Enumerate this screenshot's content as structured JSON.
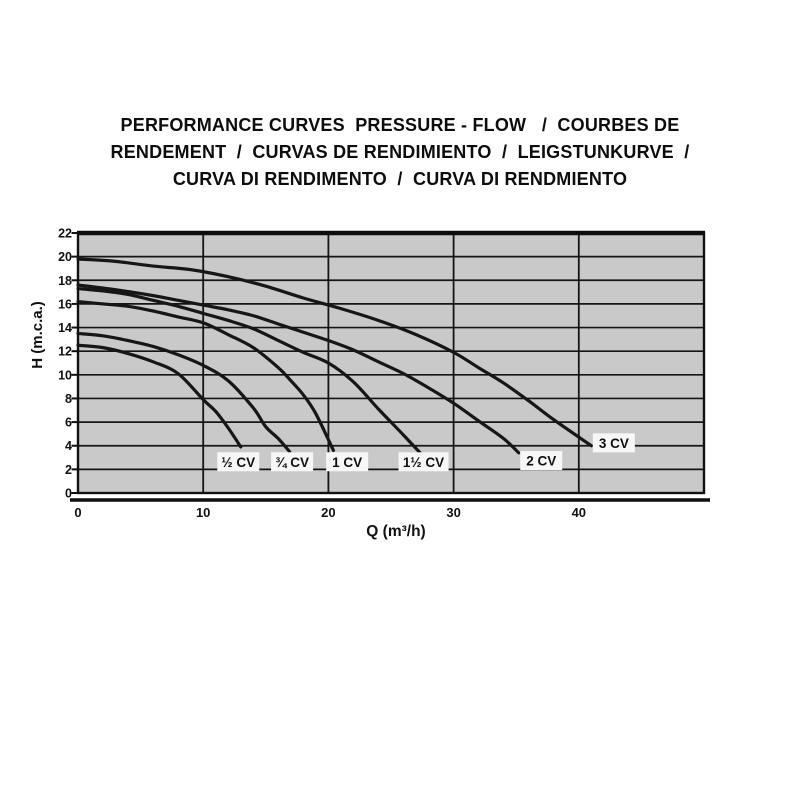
{
  "title": {
    "line1": "PERFORMANCE CURVES  PRESSURE - FLOW   /  COURBES DE",
    "line2": "RENDEMENT  /  CURVAS DE RENDIMIENTO  /  LEIGSTUNKURVE  /",
    "line3": "CURVA DI RENDIMENTO  /  CURVA DI RENDMIENTO"
  },
  "chart_data": {
    "type": "line",
    "xlabel": "Q (m³/h)",
    "ylabel": "H (m.c.a.)",
    "xlim": [
      0,
      50
    ],
    "ylim": [
      0,
      22
    ],
    "x_ticks": [
      0,
      10,
      20,
      30,
      40
    ],
    "y_ticks": [
      0,
      2,
      4,
      6,
      8,
      10,
      12,
      14,
      16,
      18,
      20,
      22
    ],
    "grid": true,
    "legend_position": "inline-labels",
    "plot_bg": "#c9c9c9",
    "grid_color": "#151515",
    "curve_color": "#161616",
    "label_box_bg": "#f7f7f7",
    "series": [
      {
        "name": "½ CV",
        "points": [
          [
            0,
            12.5
          ],
          [
            2,
            12.3
          ],
          [
            4,
            11.8
          ],
          [
            6,
            11.1
          ],
          [
            8,
            10.1
          ],
          [
            10,
            7.9
          ],
          [
            11,
            6.9
          ],
          [
            12,
            5.5
          ],
          [
            13,
            3.9
          ]
        ]
      },
      {
        "name": "¾ CV",
        "points": [
          [
            0,
            13.5
          ],
          [
            2,
            13.3
          ],
          [
            4,
            12.9
          ],
          [
            6,
            12.4
          ],
          [
            8,
            11.7
          ],
          [
            10,
            10.8
          ],
          [
            12,
            9.5
          ],
          [
            14,
            7.2
          ],
          [
            15,
            5.6
          ],
          [
            16,
            4.6
          ],
          [
            16.9,
            3.5
          ]
        ]
      },
      {
        "name": "1 CV",
        "points": [
          [
            0,
            16.2
          ],
          [
            2,
            16.0
          ],
          [
            4,
            15.8
          ],
          [
            6,
            15.4
          ],
          [
            8,
            14.9
          ],
          [
            10,
            14.4
          ],
          [
            12,
            13.4
          ],
          [
            14,
            12.3
          ],
          [
            16,
            10.6
          ],
          [
            17,
            9.5
          ],
          [
            18,
            8.3
          ],
          [
            19,
            6.7
          ],
          [
            20.4,
            3.6
          ]
        ]
      },
      {
        "name": "1½ CV",
        "points": [
          [
            0,
            17.3
          ],
          [
            2,
            17.1
          ],
          [
            4,
            16.8
          ],
          [
            6,
            16.3
          ],
          [
            8,
            15.8
          ],
          [
            10,
            15.2
          ],
          [
            12,
            14.6
          ],
          [
            14,
            13.9
          ],
          [
            16,
            12.9
          ],
          [
            18,
            11.9
          ],
          [
            20,
            11.0
          ],
          [
            22,
            9.4
          ],
          [
            24,
            7.1
          ],
          [
            26,
            4.9
          ],
          [
            27.5,
            3.2
          ]
        ]
      },
      {
        "name": "2 CV",
        "points": [
          [
            0,
            17.6
          ],
          [
            3,
            17.2
          ],
          [
            6,
            16.7
          ],
          [
            8,
            16.3
          ],
          [
            10,
            15.9
          ],
          [
            12,
            15.5
          ],
          [
            14,
            15.0
          ],
          [
            16,
            14.3
          ],
          [
            18,
            13.6
          ],
          [
            20,
            12.9
          ],
          [
            22,
            12.1
          ],
          [
            24,
            11.1
          ],
          [
            26,
            10.1
          ],
          [
            28,
            8.9
          ],
          [
            30,
            7.6
          ],
          [
            32,
            6.1
          ],
          [
            34,
            4.6
          ],
          [
            35.2,
            3.4
          ]
        ]
      },
      {
        "name": "3 CV",
        "points": [
          [
            0,
            19.8
          ],
          [
            3,
            19.6
          ],
          [
            6,
            19.2
          ],
          [
            9,
            18.9
          ],
          [
            12,
            18.3
          ],
          [
            15,
            17.5
          ],
          [
            18,
            16.5
          ],
          [
            21,
            15.6
          ],
          [
            24,
            14.6
          ],
          [
            27,
            13.4
          ],
          [
            30,
            11.9
          ],
          [
            32,
            10.6
          ],
          [
            34,
            9.3
          ],
          [
            36,
            7.8
          ],
          [
            38,
            6.2
          ],
          [
            41,
            4.0
          ]
        ]
      }
    ],
    "annotations": [
      {
        "text": "½ CV",
        "x": 12.8,
        "y": 2.6
      },
      {
        "text": "¾ CV",
        "x": 17.1,
        "y": 2.6
      },
      {
        "text": "1 CV",
        "x": 21.5,
        "y": 2.6
      },
      {
        "text": "1½ CV",
        "x": 27.6,
        "y": 2.6
      },
      {
        "text": "2 CV",
        "x": 37.0,
        "y": 2.7
      },
      {
        "text": "3 CV",
        "x": 42.8,
        "y": 4.2
      }
    ]
  }
}
